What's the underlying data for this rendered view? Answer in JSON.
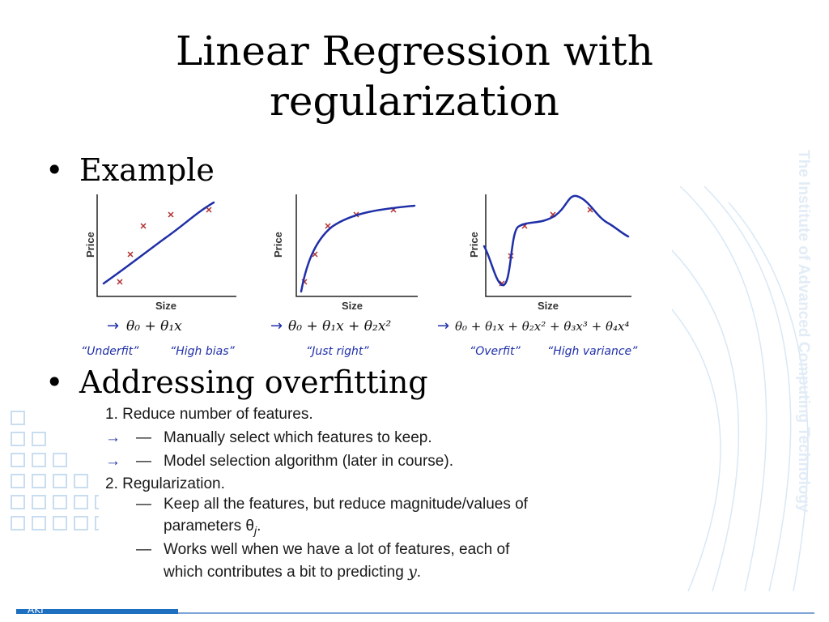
{
  "slide": {
    "title_line1": "Linear Regression with",
    "title_line2": "regularization",
    "bullet1": "Example",
    "bullet2": "Addressing overfitting",
    "bullet_glyph": "•",
    "watermark": "The Institute of Advanced Computing Technology",
    "footer_logo": "AKI"
  },
  "panels": [
    {
      "ylabel": "Price",
      "xlabel": "Size",
      "formula": "θ₀ + θ₁x",
      "note_left": "“Underfit”",
      "note_right": "“High bias”"
    },
    {
      "ylabel": "Price",
      "xlabel": "Size",
      "formula": "θ₀ + θ₁x + θ₂x²",
      "note_left": "“Just right”",
      "note_right": ""
    },
    {
      "ylabel": "Price",
      "xlabel": "Size",
      "formula": "θ₀ + θ₁x + θ₂x² + θ₃x³ + θ₄x⁴",
      "note_left": "“Overfit”",
      "note_right": "“High variance”"
    }
  ],
  "list": {
    "item1": "1.  Reduce number of features.",
    "item1a": "Manually select which features to keep.",
    "item1b": "Model selection algorithm (later in course).",
    "item2": "2.  Regularization.",
    "item2a_l1": "Keep all the features, but reduce magnitude/values of",
    "item2a_l2": "parameters θ",
    "item2a_sub": "j",
    "item2a_end": ".",
    "item2b_l1": "Works well when we have a lot of features, each of",
    "item2b_l2": "which contributes a bit to predicting",
    "item2b_var": "y",
    "item2b_end": ".",
    "dash": "—",
    "arrow": "→"
  },
  "colors": {
    "curve": "#1f2fa8",
    "cross": "#b03030",
    "handwriting": "#1f2fa8",
    "accent": "#1f6fc0"
  }
}
